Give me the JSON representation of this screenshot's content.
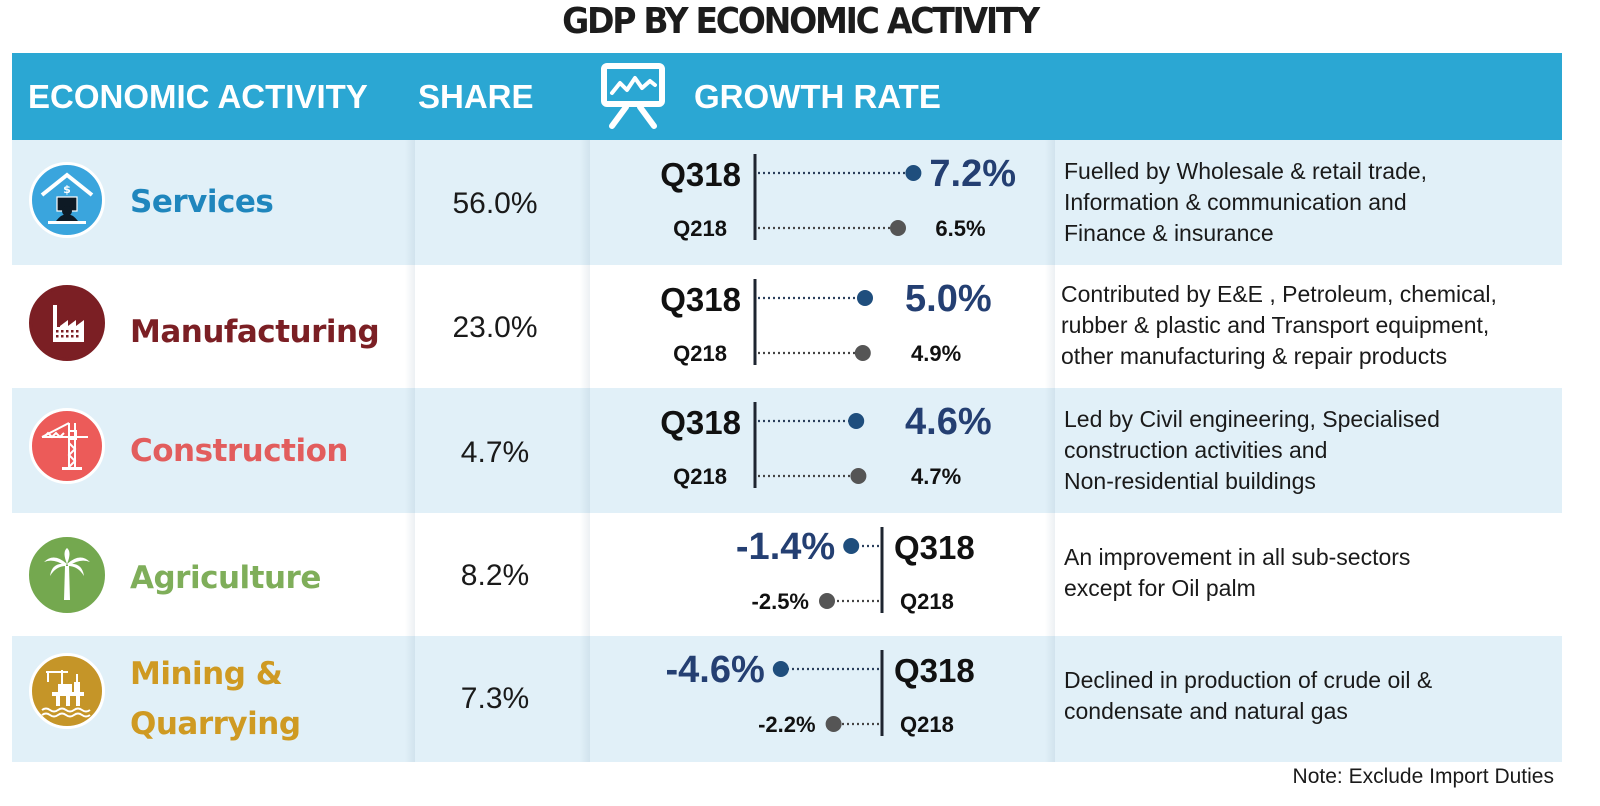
{
  "title": "GDP BY ECONOMIC ACTIVITY",
  "header": {
    "activity": "ECONOMIC ACTIVITY",
    "share": "SHARE",
    "growth": "GROWTH RATE",
    "growth_icon": "chart-presentation-icon"
  },
  "colors": {
    "header_bg": "#2ba7d3",
    "row_shade": "#e1f0f8",
    "q318_dot": "#1f4e7d",
    "q218_dot": "#555555",
    "q318_text": "#243f72"
  },
  "rows": [
    {
      "name": "Services",
      "color": "#1f86bd",
      "icon": "services-icon",
      "icon_bg": "#3aa5dd",
      "share": "56.0%",
      "q318_label": "Q318",
      "q218_label": "Q218",
      "q318_value": "7.2%",
      "q218_value": "6.5%",
      "description": [
        "Fuelled by Wholesale & retail trade,",
        "Information & communication and",
        "Finance & insurance"
      ]
    },
    {
      "name": "Manufacturing",
      "color": "#7b1f24",
      "icon": "factory-icon",
      "icon_bg": "#7b1f24",
      "share": "23.0%",
      "q318_label": "Q318",
      "q218_label": "Q218",
      "q318_value": "5.0%",
      "q218_value": "4.9%",
      "description": [
        "Contributed by E&E , Petroleum, chemical,",
        "rubber & plastic and Transport equipment,",
        "other manufacturing & repair products"
      ]
    },
    {
      "name": "Construction",
      "color": "#e25d5d",
      "icon": "crane-icon",
      "icon_bg": "#ec5b59",
      "share": "4.7%",
      "q318_label": "Q318",
      "q218_label": "Q218",
      "q318_value": "4.6%",
      "q218_value": "4.7%",
      "description": [
        "Led by Civil engineering, Specialised",
        "construction activities and",
        "Non-residential buildings"
      ]
    },
    {
      "name": "Agriculture",
      "color": "#7fae5a",
      "icon": "palm-tree-icon",
      "icon_bg": "#74a84f",
      "share": "8.2%",
      "q318_label": "Q318",
      "q218_label": "Q218",
      "q318_value": "-1.4%",
      "q218_value": "-2.5%",
      "description": [
        "An improvement in all sub-sectors",
        "except for Oil palm"
      ]
    },
    {
      "name_lines": [
        "Mining &",
        "Quarrying"
      ],
      "color": "#cf9a22",
      "icon": "oil-rig-icon",
      "icon_bg": "#c59528",
      "share": "7.3%",
      "q318_label": "Q318",
      "q218_label": "Q218",
      "q318_value": "-4.6%",
      "q218_value": "-2.2%",
      "description": [
        "Declined in production of crude oil &",
        "condensate and natural gas"
      ]
    }
  ],
  "note": "Note: Exclude Import Duties",
  "chart_data": {
    "type": "table",
    "title": "GDP BY ECONOMIC ACTIVITY",
    "columns": [
      "ECONOMIC ACTIVITY",
      "SHARE",
      "GROWTH RATE Q318",
      "GROWTH RATE Q218",
      "Description"
    ],
    "categories": [
      "Services",
      "Manufacturing",
      "Construction",
      "Agriculture",
      "Mining & Quarrying"
    ],
    "share_percent": [
      56.0,
      23.0,
      4.7,
      8.2,
      7.3
    ],
    "series": [
      {
        "name": "Q318",
        "values": [
          7.2,
          5.0,
          4.6,
          -1.4,
          -4.6
        ]
      },
      {
        "name": "Q218",
        "values": [
          6.5,
          4.9,
          4.7,
          -2.5,
          -2.2
        ]
      }
    ],
    "unit": "%",
    "note": "Note: Exclude Import Duties"
  }
}
